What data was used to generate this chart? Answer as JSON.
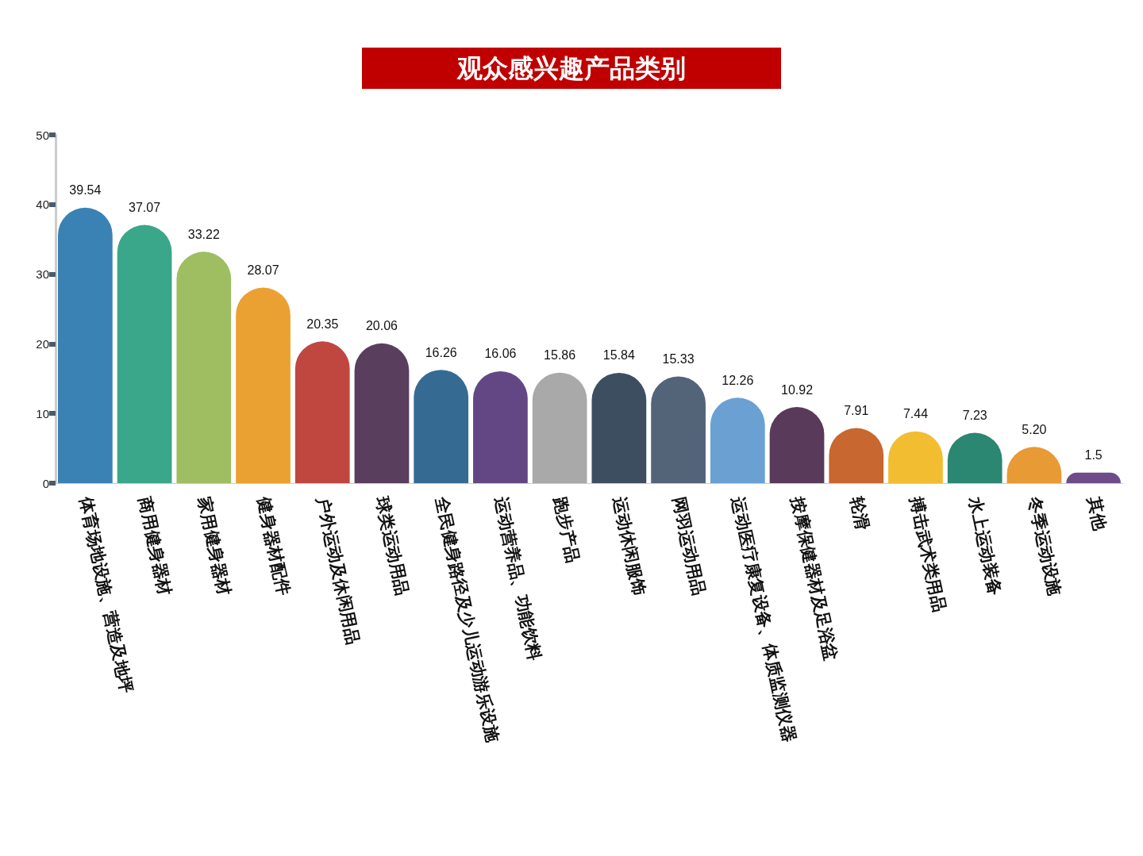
{
  "chart_data": {
    "type": "bar",
    "title": "观众感兴趣产品类别",
    "categories": [
      "体育场地设施、营造及地坪",
      "商用健身器材",
      "家用健身器材",
      "健身器材配件",
      "户外运动及休闲用品",
      "球类运动用品",
      "全民健身路径及少儿运动游乐设施",
      "运动营养品、功能饮料",
      "跑步产品",
      "运动休闲服饰",
      "网羽运动用品",
      "运动医疗康复设备、体质监测仪器",
      "按摩保健器材及足浴盆",
      "轮滑",
      "搏击武术类用品",
      "水上运动装备",
      "冬季运动设施",
      "其他"
    ],
    "values": [
      39.54,
      37.07,
      33.22,
      28.07,
      20.35,
      20.06,
      16.26,
      16.06,
      15.86,
      15.84,
      15.33,
      12.26,
      10.92,
      7.91,
      7.44,
      7.23,
      5.2,
      1.5
    ],
    "value_labels": [
      "39.54",
      "37.07",
      "33.22",
      "28.07",
      "20.35",
      "20.06",
      "16.26",
      "16.06",
      "15.86",
      "15.84",
      "15.33",
      "12.26",
      "10.92",
      "7.91",
      "7.44",
      "7.23",
      "5.20",
      "1.5"
    ],
    "colors": [
      "#3b82b4",
      "#3aa68a",
      "#9fbe62",
      "#eba131",
      "#c0473f",
      "#5a3e5e",
      "#356b93",
      "#634785",
      "#a9a9a9",
      "#3d4e61",
      "#536378",
      "#6aa1d2",
      "#5a3a5a",
      "#c8672f",
      "#f2bd30",
      "#2b8672",
      "#e89a35",
      "#6e4c8a"
    ],
    "ylim": [
      0,
      50
    ],
    "yticks": [
      0,
      10,
      20,
      30,
      40,
      50
    ]
  }
}
